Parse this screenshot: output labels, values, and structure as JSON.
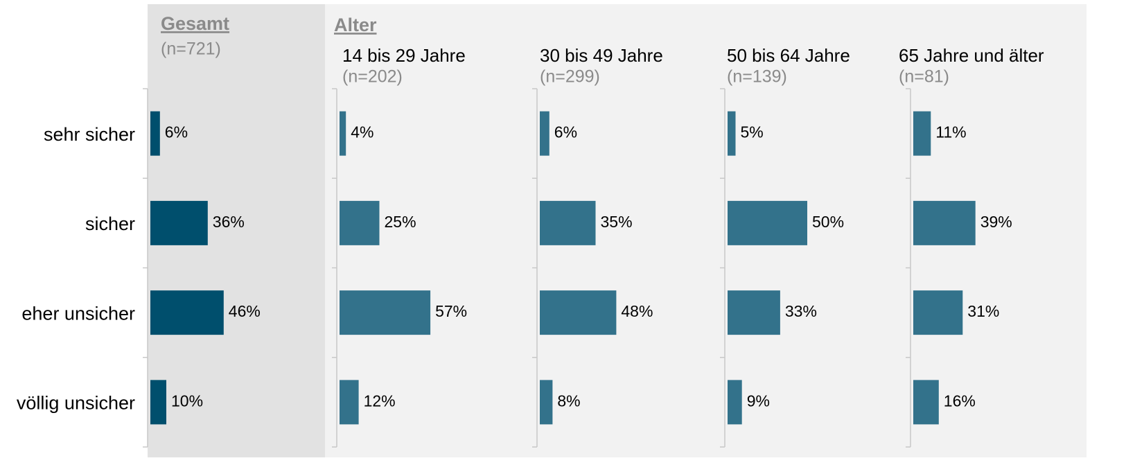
{
  "categories": [
    "sehr sicher",
    "sicher",
    "eher unsicher",
    "völlig unsicher"
  ],
  "header": "Alter",
  "chart_data": [
    {
      "type": "bar",
      "orientation": "horizontal",
      "title": "Gesamt",
      "subtitle": "(n=721)",
      "color": "#004f6d",
      "values": [
        6,
        36,
        46,
        10
      ],
      "value_labels": [
        "6%",
        "36%",
        "46%",
        "10%"
      ]
    },
    {
      "type": "bar",
      "orientation": "horizontal",
      "title": "14 bis 29 Jahre",
      "subtitle": "(n=202)",
      "color": "#33728b",
      "values": [
        4,
        25,
        57,
        12
      ],
      "value_labels": [
        "4%",
        "25%",
        "57%",
        "12%"
      ]
    },
    {
      "type": "bar",
      "orientation": "horizontal",
      "title": "30 bis 49 Jahre",
      "subtitle": "(n=299)",
      "color": "#33728b",
      "values": [
        6,
        35,
        48,
        8
      ],
      "value_labels": [
        "6%",
        "35%",
        "48%",
        "8%"
      ]
    },
    {
      "type": "bar",
      "orientation": "horizontal",
      "title": "50 bis 64 Jahre",
      "subtitle": "(n=139)",
      "color": "#33728b",
      "values": [
        5,
        50,
        33,
        9
      ],
      "value_labels": [
        "5%",
        "50%",
        "33%",
        "9%"
      ]
    },
    {
      "type": "bar",
      "orientation": "horizontal",
      "title": "65 Jahre und älter",
      "subtitle": "(n=81)",
      "color": "#33728b",
      "values": [
        11,
        39,
        31,
        16
      ],
      "value_labels": [
        "11%",
        "39%",
        "31%",
        "16%"
      ]
    }
  ]
}
